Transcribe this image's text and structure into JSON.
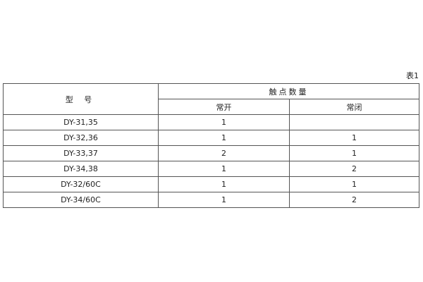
{
  "caption": "表1",
  "header": {
    "model": "型 号",
    "contacts": "触点数量",
    "no": "常开",
    "nc": "常闭"
  },
  "rows": [
    {
      "model": "DY-31,35",
      "no": "1",
      "nc": ""
    },
    {
      "model": "DY-32,36",
      "no": "1",
      "nc": "1"
    },
    {
      "model": "DY-33,37",
      "no": "2",
      "nc": "1"
    },
    {
      "model": "DY-34,38",
      "no": "1",
      "nc": "2"
    },
    {
      "model": "DY-32/60C",
      "no": "1",
      "nc": "1"
    },
    {
      "model": "DY-34/60C",
      "no": "1",
      "nc": "2"
    }
  ]
}
